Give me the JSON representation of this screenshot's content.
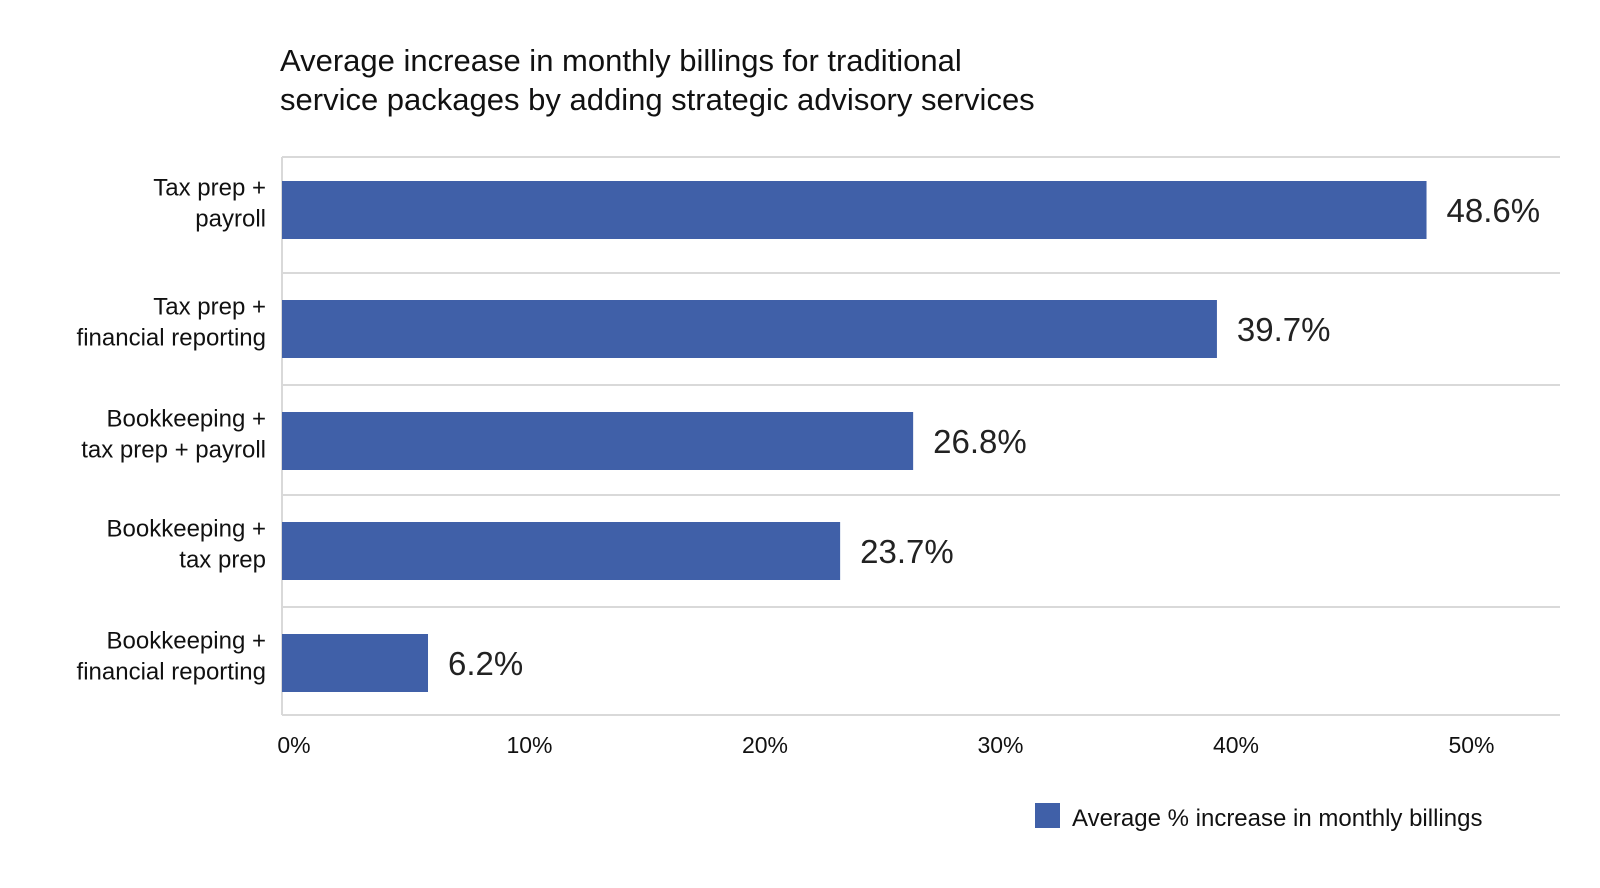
{
  "chart_data": {
    "type": "bar",
    "orientation": "horizontal",
    "title": "Average increase in monthly billings for traditional service packages by adding strategic advisory services",
    "title_lines": [
      "Average increase in monthly billings for traditional",
      "service packages by adding strategic advisory services"
    ],
    "categories": [
      [
        "Tax prep +",
        "payroll"
      ],
      [
        "Tax prep +",
        "financial reporting"
      ],
      [
        "Bookkeeping +",
        "tax prep + payroll"
      ],
      [
        "Bookkeeping +",
        "tax prep"
      ],
      [
        "Bookkeeping +",
        "financial reporting"
      ]
    ],
    "series": [
      {
        "name": "Average % increase in monthly billings",
        "values": [
          48.6,
          39.7,
          26.8,
          23.7,
          6.2
        ],
        "labels": [
          "48.6%",
          "39.7%",
          "26.8%",
          "23.7%",
          "6.2%"
        ],
        "color": "#4060a8"
      }
    ],
    "xlim": [
      0,
      54
    ],
    "xticks": [
      0,
      10,
      20,
      30,
      40,
      50
    ],
    "xtick_labels": [
      "0%",
      "10%",
      "20%",
      "30%",
      "40%",
      "50%"
    ],
    "xlabel": "",
    "ylabel": "",
    "grid": "horizontal separators between categories",
    "legend_position": "bottom-right",
    "colors": {
      "bar": "#4060a8",
      "grid": "#d9d9d9",
      "text": "#111111"
    }
  }
}
